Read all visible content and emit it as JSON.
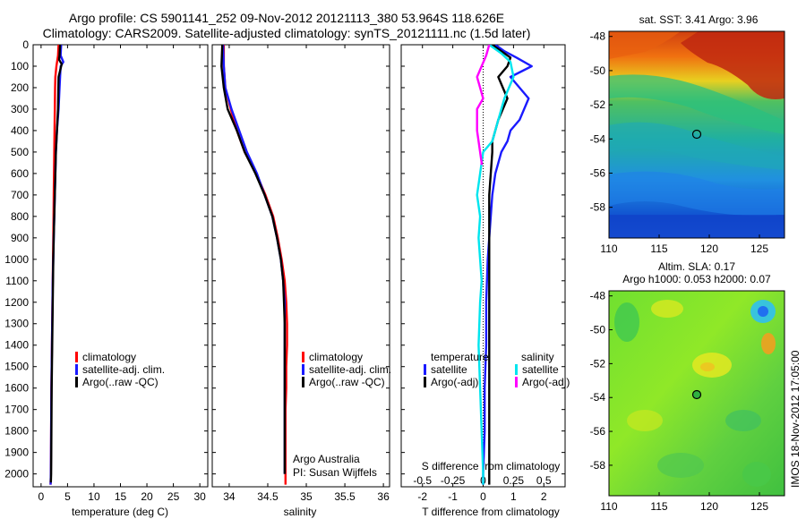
{
  "header": {
    "line1": "Argo profile: CS 5901141_252 09-Nov-2012 20121113_380 53.964S 118.626E",
    "line2": "Climatology: CARS2009. Satellite-adjusted climatology: synTS_20121111.nc (1.5d later)"
  },
  "colors": {
    "climatology": "#ff0000",
    "satellite": "#1a1aff",
    "argo": "#000000",
    "satellite_diff": "#00e5ee",
    "argo_diff_s": "#ff00ff"
  },
  "depth_axis": {
    "range": [
      0,
      2060
    ],
    "ticks": [
      0,
      100,
      200,
      300,
      400,
      500,
      600,
      700,
      800,
      900,
      1000,
      1100,
      1200,
      1300,
      1400,
      1500,
      1600,
      1700,
      1800,
      1900,
      2000
    ]
  },
  "temperature_panel": {
    "xlabel": "temperature (deg C)",
    "xlim": [
      -1.5,
      31.5
    ],
    "xticks": [
      0,
      5,
      10,
      15,
      20,
      25,
      30
    ],
    "legend": [
      "climatology",
      "satellite-adj. clim.",
      "Argo(..raw -QC)"
    ]
  },
  "salinity_panel": {
    "xlabel": "salinity",
    "xlim": [
      33.78,
      36.08
    ],
    "xticks": [
      "34",
      "34.5",
      "35",
      "35.5",
      "36"
    ],
    "xtick_values": [
      34,
      34.5,
      35,
      35.5,
      36
    ],
    "legend": [
      "climatology",
      "satellite-adj. clim.",
      "Argo(..raw -QC)"
    ],
    "annotation_1": "Argo Australia",
    "annotation_2": "PI: Susan Wijffels"
  },
  "difference_panel": {
    "xlabel": "T difference from climatology",
    "toplabel": "S difference from climatology",
    "xlim": [
      -2.7,
      2.7
    ],
    "xticks": [
      "-2",
      "-1",
      "0",
      "1",
      "2"
    ],
    "xtick_values": [
      -2,
      -1,
      0,
      1,
      2
    ],
    "s_ticks": [
      "-0.5",
      "-0.25",
      "0",
      "0.25",
      "0.5"
    ],
    "s_tick_positions": [
      -2,
      -1,
      0,
      1,
      2
    ],
    "legend_temp_title": "temperature",
    "legend_sal_title": "salinity",
    "legend_temp": [
      "satellite",
      "Argo(-adj)"
    ],
    "legend_sal": [
      "satellite",
      "Argo(-adj)"
    ]
  },
  "sst_map": {
    "title": "sat. SST: 3.41  Argo: 3.96",
    "xticks": [
      "110",
      "115",
      "120",
      "125"
    ],
    "yticks": [
      "-48",
      "-50",
      "-52",
      "-54",
      "-56",
      "-58"
    ],
    "marker": {
      "lon": 118.6,
      "lat": -54.0
    }
  },
  "sla_map": {
    "title_1": "Altim. SLA: 0.17",
    "title_2": "Argo h1000: 0.053 h2000: 0.07",
    "xticks": [
      "110",
      "115",
      "120",
      "125"
    ],
    "yticks": [
      "-48",
      "-50",
      "-52",
      "-54",
      "-56",
      "-58"
    ],
    "marker": {
      "lon": 118.6,
      "lat": -54.0
    }
  },
  "side_label": "IMOS 18-Nov-2012 17:05:00",
  "chart_data": [
    {
      "type": "line",
      "xlabel": "temperature (deg C)",
      "ylabel": "",
      "xlim": [
        -1.5,
        31.5
      ],
      "ylim": [
        2060,
        0
      ],
      "series": [
        {
          "name": "climatology",
          "x": [
            3.3,
            3.2,
            2.9,
            2.7,
            2.65,
            2.6,
            2.55,
            2.5,
            2.45,
            2.4,
            2.35,
            2.3,
            2.25,
            2.2,
            2.15,
            2.1,
            2.05,
            2.0,
            1.95,
            1.9,
            1.85,
            1.8
          ],
          "y": [
            0,
            50,
            100,
            150,
            200,
            300,
            400,
            500,
            600,
            700,
            800,
            900,
            1000,
            1100,
            1200,
            1300,
            1400,
            1500,
            1600,
            1800,
            2000,
            2050
          ]
        },
        {
          "name": "satellite-adj. clim.",
          "x": [
            3.8,
            3.7,
            4.2,
            3.7,
            3.5,
            3.3,
            3.0,
            2.8,
            2.7,
            2.6,
            2.5,
            2.4,
            2.3,
            2.2,
            2.15,
            2.1,
            2.05,
            2.0,
            1.95,
            1.9,
            1.85,
            1.8
          ],
          "y": [
            0,
            50,
            80,
            100,
            200,
            300,
            400,
            500,
            600,
            700,
            800,
            900,
            1000,
            1100,
            1200,
            1300,
            1400,
            1500,
            1600,
            1800,
            2000,
            2050
          ]
        },
        {
          "name": "Argo(..raw -QC)",
          "x": [
            3.6,
            3.5,
            3.4,
            3.9,
            3.3,
            3.2,
            3.0,
            2.8,
            2.7,
            2.6,
            2.5,
            2.4,
            2.3,
            2.25,
            2.2,
            2.15,
            2.1,
            2.05,
            2.0,
            1.95,
            1.9,
            1.85
          ],
          "y": [
            0,
            50,
            70,
            90,
            150,
            300,
            400,
            500,
            600,
            700,
            800,
            900,
            1000,
            1100,
            1200,
            1300,
            1400,
            1500,
            1600,
            1800,
            2000,
            2040
          ]
        }
      ]
    },
    {
      "type": "line",
      "xlabel": "salinity",
      "ylabel": "",
      "xlim": [
        33.78,
        36.08
      ],
      "ylim": [
        2060,
        0
      ],
      "series": [
        {
          "name": "climatology",
          "x": [
            33.93,
            33.93,
            33.95,
            34.02,
            34.1,
            34.2,
            34.35,
            34.47,
            34.57,
            34.63,
            34.68,
            34.72,
            34.74,
            34.75,
            34.75,
            34.74,
            34.74,
            34.73,
            34.73,
            34.73,
            34.73
          ],
          "y": [
            0,
            100,
            200,
            300,
            400,
            500,
            600,
            700,
            800,
            900,
            1000,
            1100,
            1200,
            1300,
            1400,
            1500,
            1600,
            1700,
            1800,
            1900,
            2050
          ]
        },
        {
          "name": "satellite-adj. clim.",
          "x": [
            33.92,
            33.93,
            33.95,
            34.03,
            34.13,
            34.23,
            34.36,
            34.46,
            34.56,
            34.62,
            34.67,
            34.7,
            34.72,
            34.72,
            34.72,
            34.72,
            34.72,
            34.72,
            34.72,
            34.72,
            34.72
          ],
          "y": [
            0,
            100,
            200,
            300,
            400,
            500,
            600,
            700,
            800,
            900,
            1000,
            1100,
            1200,
            1300,
            1400,
            1500,
            1600,
            1700,
            1800,
            1900,
            2000
          ]
        },
        {
          "name": "Argo(..raw -QC)",
          "x": [
            33.91,
            33.9,
            33.93,
            33.98,
            34.1,
            34.2,
            34.34,
            34.46,
            34.56,
            34.62,
            34.67,
            34.7,
            34.71,
            34.72,
            34.72,
            34.72,
            34.72,
            34.72,
            34.72,
            34.72,
            34.72
          ],
          "y": [
            0,
            100,
            200,
            300,
            400,
            500,
            600,
            700,
            800,
            900,
            1000,
            1100,
            1200,
            1300,
            1400,
            1500,
            1600,
            1700,
            1800,
            1900,
            2000
          ]
        }
      ]
    },
    {
      "type": "line",
      "xlabel": "T difference from climatology",
      "ylabel": "",
      "xlim": [
        -2.7,
        2.7
      ],
      "ylim": [
        2060,
        0
      ],
      "series": [
        {
          "name": "temperature satellite",
          "x": [
            0.4,
            0.7,
            1.1,
            1.6,
            0.9,
            1.5,
            1.2,
            0.9,
            0.8,
            0.6,
            0.4,
            0.3,
            0.25,
            0.2,
            0.15,
            0.1,
            0.1,
            0.05,
            0.05,
            0.0,
            0.0
          ],
          "y": [
            0,
            30,
            60,
            100,
            150,
            250,
            350,
            400,
            450,
            500,
            600,
            700,
            800,
            900,
            1000,
            1200,
            1400,
            1600,
            1800,
            2000,
            2050
          ]
        },
        {
          "name": "temperature Argo(-adj)",
          "x": [
            0.3,
            0.6,
            0.9,
            0.8,
            0.5,
            0.8,
            0.5,
            0.3,
            0.3,
            0.25,
            0.2,
            0.2,
            0.2,
            0.2,
            0.2,
            0.2,
            0.2,
            0.2,
            0.2,
            0.2
          ],
          "y": [
            0,
            30,
            60,
            100,
            150,
            250,
            350,
            450,
            500,
            600,
            700,
            800,
            900,
            1000,
            1200,
            1400,
            1600,
            1800,
            2000,
            2050
          ]
        },
        {
          "name": "salinity satellite",
          "x": [
            0.2,
            0.6,
            0.9,
            1.0,
            0.7,
            0.5,
            0.3,
            0.0,
            -0.1,
            -0.2,
            -0.1,
            -0.15,
            -0.1,
            -0.05,
            -0.1,
            -0.15,
            -0.1,
            -0.05,
            0.0,
            0.0
          ],
          "y": [
            0,
            40,
            80,
            150,
            250,
            350,
            450,
            500,
            600,
            700,
            800,
            900,
            1000,
            1100,
            1200,
            1400,
            1600,
            1800,
            2000,
            2050
          ]
        },
        {
          "name": "salinity Argo(-adj)",
          "x": [
            0.2,
            0.1,
            -0.2,
            0.0,
            -0.2,
            -0.2,
            -0.1,
            -0.05,
            -0.05
          ],
          "y": [
            0,
            50,
            150,
            250,
            300,
            400,
            500,
            550,
            560
          ]
        }
      ]
    }
  ]
}
